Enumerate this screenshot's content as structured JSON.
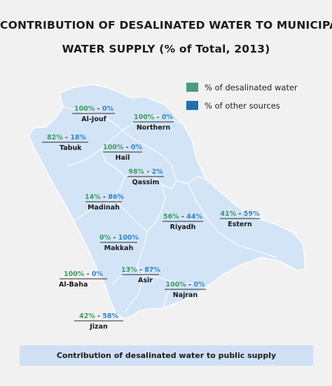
{
  "title_line1": "CONTRIBUTION OF DESALINATED WATER TO MUNICIPAL",
  "title_line2": "WATER SUPPLY (% of Total, 2013)",
  "legend": [
    {
      "label": "% of desalinated water",
      "color": "#4a9d78"
    },
    {
      "label": "% of other sources",
      "color": "#1f6fb4"
    }
  ],
  "colors": {
    "map_fill": "#d3e4f7",
    "border": "#ffffff",
    "desal_text": "#3d9a63",
    "other_text": "#2f86c9"
  },
  "regions": [
    {
      "name": "Al-Jouf",
      "desalinated": "100%",
      "other": "0%"
    },
    {
      "name": "Northern",
      "desalinated": "100%",
      "other": "0%"
    },
    {
      "name": "Tabuk",
      "desalinated": "82%",
      "other": "18%"
    },
    {
      "name": "Hail",
      "desalinated": "100%",
      "other": "0%"
    },
    {
      "name": "Qassim",
      "desalinated": "98%",
      "other": "2%"
    },
    {
      "name": "Madinah",
      "desalinated": "14%",
      "other": "86%"
    },
    {
      "name": "Riyadh",
      "desalinated": "56%",
      "other": "44%"
    },
    {
      "name": "Estern",
      "desalinated": "41%",
      "other": "59%"
    },
    {
      "name": "Makkah",
      "desalinated": "0%",
      "other": "100%"
    },
    {
      "name": "Al-Baha",
      "desalinated": "100%",
      "other": "0%"
    },
    {
      "name": "Asir",
      "desalinated": "13%",
      "other": "87%"
    },
    {
      "name": "Najran",
      "desalinated": "100%",
      "other": "0%"
    },
    {
      "name": "Jizan",
      "desalinated": "42%",
      "other": "58%"
    }
  ],
  "separator": " - ",
  "footer": "Contribution of desalinated water to public supply"
}
